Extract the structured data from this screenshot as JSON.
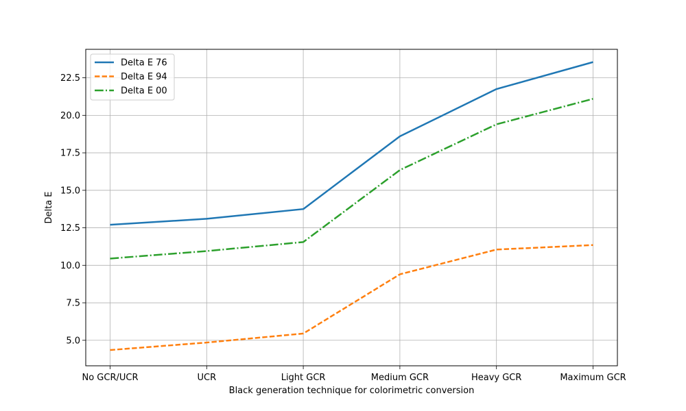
{
  "chart_data": {
    "type": "line",
    "title": "",
    "xlabel": "Black generation technique for colorimetric conversion",
    "ylabel": "Delta E",
    "categories": [
      "No GCR/UCR",
      "UCR",
      "Light GCR",
      "Medium GCR",
      "Heavy GCR",
      "Maximum GCR"
    ],
    "ylim": [
      3.3,
      24.4
    ],
    "yticks": [
      5.0,
      7.5,
      10.0,
      12.5,
      15.0,
      17.5,
      20.0,
      22.5
    ],
    "ytick_labels": [
      "5.0",
      "7.5",
      "10.0",
      "12.5",
      "15.0",
      "17.5",
      "20.0",
      "22.5"
    ],
    "grid": true,
    "legend_position": "top-left",
    "series": [
      {
        "name": "Delta E 76",
        "color": "#1f77b4",
        "style": "solid",
        "values": [
          12.7,
          13.1,
          13.75,
          18.6,
          21.75,
          23.55
        ]
      },
      {
        "name": "Delta E 94",
        "color": "#ff7f0e",
        "style": "dashed",
        "values": [
          4.35,
          4.85,
          5.45,
          9.4,
          11.05,
          11.35
        ]
      },
      {
        "name": "Delta E 00",
        "color": "#2ca02c",
        "style": "dashdot",
        "values": [
          10.45,
          10.95,
          11.55,
          16.35,
          19.4,
          21.1
        ]
      }
    ]
  }
}
